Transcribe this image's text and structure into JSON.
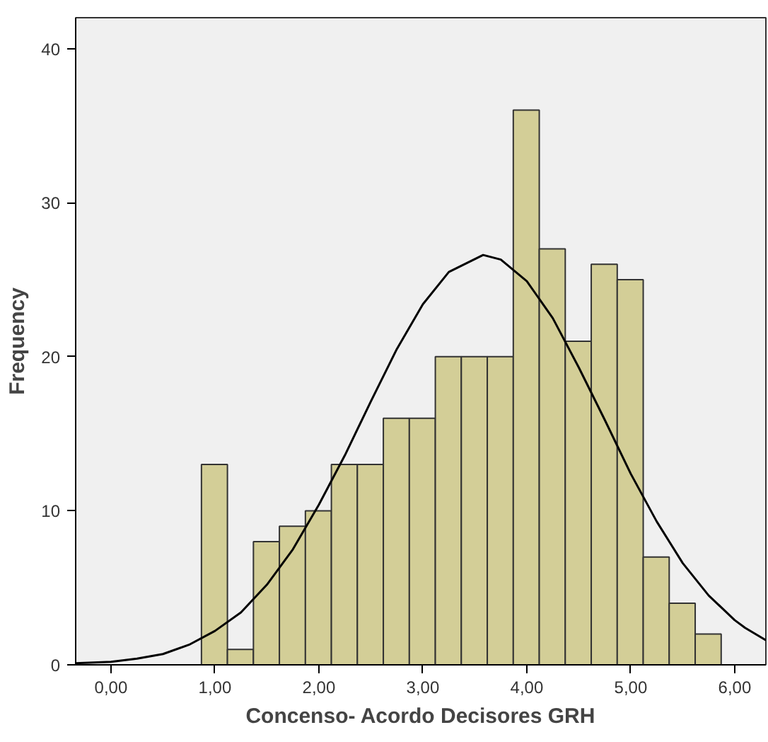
{
  "chart_data": {
    "type": "histogram",
    "xlabel": "Concenso- Acordo Decisores GRH",
    "ylabel": "Frequency",
    "bins": [
      0.87,
      1.12,
      1.37,
      1.62,
      1.87,
      2.12,
      2.37,
      2.62,
      2.87,
      3.12,
      3.37,
      3.62,
      3.87,
      4.12,
      4.37,
      4.62,
      4.87,
      5.12,
      5.37,
      5.62,
      5.87
    ],
    "values": [
      13,
      1,
      8,
      9,
      10,
      13,
      13,
      16,
      16,
      20,
      20,
      20,
      36,
      27,
      21,
      26,
      25,
      7,
      4,
      2
    ],
    "color": "#d3ce97",
    "series": [
      {
        "type": "line",
        "color": "#000000",
        "x": [
          -0.34,
          0,
          0.25,
          0.5,
          0.75,
          1.0,
          1.25,
          1.5,
          1.75,
          2.0,
          2.25,
          2.5,
          2.75,
          3.0,
          3.25,
          3.58,
          3.75,
          4.0,
          4.25,
          4.5,
          4.75,
          5.0,
          5.25,
          5.5,
          5.75,
          6.0,
          6.1,
          6.3
        ],
        "values": [
          0.1,
          0.2,
          0.4,
          0.7,
          1.3,
          2.2,
          3.4,
          5.2,
          7.5,
          10.4,
          13.6,
          17.1,
          20.5,
          23.4,
          25.5,
          26.6,
          26.3,
          24.9,
          22.5,
          19.3,
          15.9,
          12.4,
          9.3,
          6.6,
          4.5,
          2.9,
          2.4,
          1.6
        ]
      }
    ],
    "xlim": [
      -0.34,
      6.3
    ],
    "ylim": [
      0,
      42
    ],
    "xticks": [
      {
        "value": 0,
        "label": "0,00"
      },
      {
        "value": 1,
        "label": "1,00"
      },
      {
        "value": 2,
        "label": "2,00"
      },
      {
        "value": 3,
        "label": "3,00"
      },
      {
        "value": 4,
        "label": "4,00"
      },
      {
        "value": 5,
        "label": "5,00"
      },
      {
        "value": 6,
        "label": "6,00"
      }
    ],
    "yticks": [
      0,
      10,
      20,
      30,
      40
    ],
    "grid": false
  }
}
